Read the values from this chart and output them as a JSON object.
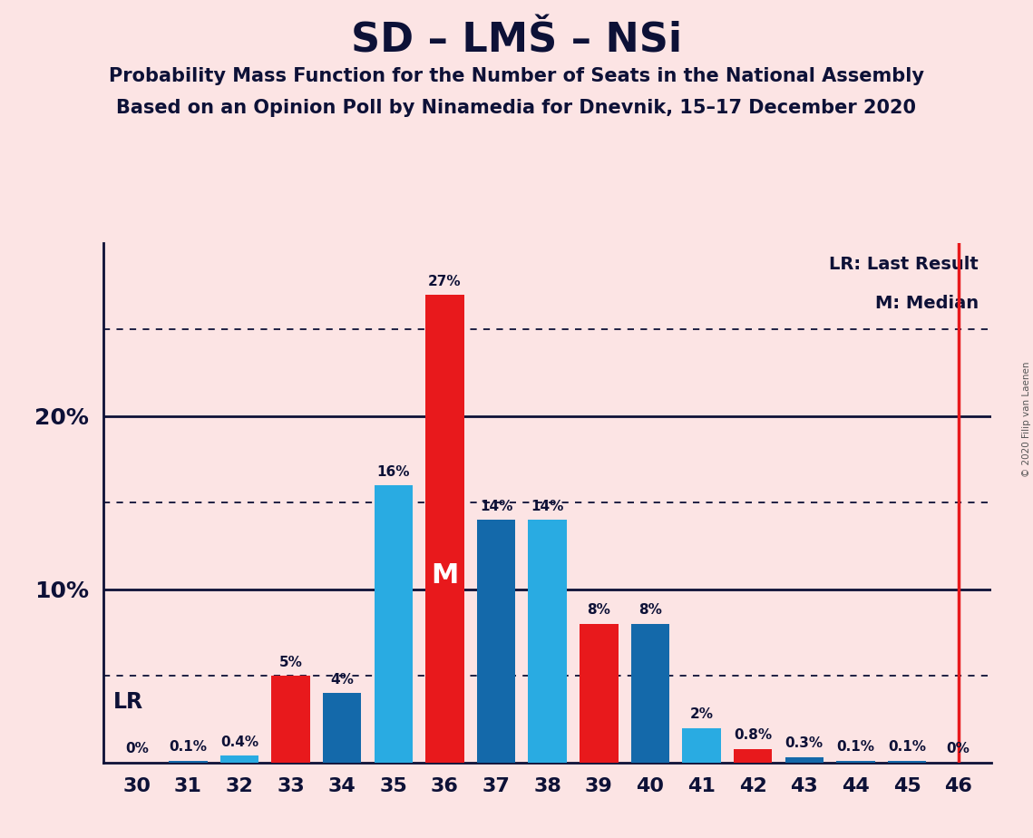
{
  "title": "SD – LMŠ – NSi",
  "subtitle1": "Probability Mass Function for the Number of Seats in the National Assembly",
  "subtitle2": "Based on an Opinion Poll by Ninamedia for Dnevnik, 15–17 December 2020",
  "copyright": "© 2020 Filip van Laenen",
  "seats": [
    30,
    31,
    32,
    33,
    34,
    35,
    36,
    37,
    38,
    39,
    40,
    41,
    42,
    43,
    44,
    45,
    46
  ],
  "values": [
    0.0,
    0.1,
    0.4,
    5.0,
    4.0,
    16.0,
    27.0,
    14.0,
    14.0,
    8.0,
    8.0,
    2.0,
    0.8,
    0.3,
    0.1,
    0.1,
    0.0
  ],
  "bar_colors": [
    "#e8191c",
    "#1469aa",
    "#29abe2",
    "#e8191c",
    "#1469aa",
    "#29abe2",
    "#e8191c",
    "#1469aa",
    "#29abe2",
    "#e8191c",
    "#1469aa",
    "#29abe2",
    "#e8191c",
    "#1469aa",
    "#1469aa",
    "#1469aa",
    "#e8191c"
  ],
  "median_seat": 36,
  "lr_seat": 46,
  "background_color": "#fce4e4",
  "dotted_gridlines": [
    5.0,
    15.0,
    25.0
  ],
  "solid_gridlines": [
    10.0,
    20.0
  ],
  "ylim": [
    0,
    30
  ],
  "ytick_positions": [
    10,
    20
  ],
  "ytick_labels": [
    "10%",
    "20%"
  ]
}
